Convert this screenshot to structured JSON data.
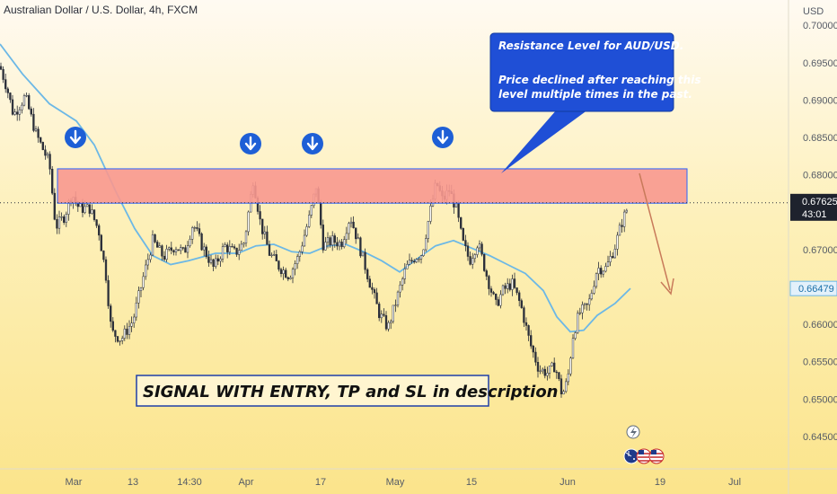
{
  "chart_data": {
    "type": "candlestick",
    "title": "Australian Dollar / U.S. Dollar, 4h, FXCM",
    "currency_label": "USD",
    "ylim": [
      0.6415,
      0.7005
    ],
    "y_ticks": [
      "0.70000",
      "0.69500",
      "0.69000",
      "0.68500",
      "0.68000",
      "0.67000",
      "0.66000",
      "0.65500",
      "0.65000",
      "0.64500"
    ],
    "x_ticks": [
      "Mar",
      "13",
      "14:30",
      "Apr",
      "17",
      "May",
      "15",
      "Jun",
      "19",
      "Jul"
    ],
    "current_price": {
      "value": 0.67625,
      "label": "0.67625",
      "countdown": "43:01"
    },
    "ma_value": {
      "value": 0.66479,
      "label": "0.66479"
    },
    "resistance_zone": {
      "low": 0.6762,
      "high": 0.6808
    },
    "resistance_touches": 4,
    "price_path": [
      [
        0,
        0.6945
      ],
      [
        8,
        0.6915
      ],
      [
        15,
        0.688
      ],
      [
        28,
        0.6905
      ],
      [
        40,
        0.6855
      ],
      [
        55,
        0.6815
      ],
      [
        62,
        0.673
      ],
      [
        72,
        0.6745
      ],
      [
        80,
        0.6775
      ],
      [
        88,
        0.6755
      ],
      [
        100,
        0.6755
      ],
      [
        110,
        0.6725
      ],
      [
        118,
        0.6665
      ],
      [
        124,
        0.659
      ],
      [
        135,
        0.658
      ],
      [
        148,
        0.6605
      ],
      [
        160,
        0.6665
      ],
      [
        170,
        0.6712
      ],
      [
        182,
        0.669
      ],
      [
        195,
        0.6705
      ],
      [
        205,
        0.6695
      ],
      [
        215,
        0.6735
      ],
      [
        225,
        0.6705
      ],
      [
        238,
        0.6675
      ],
      [
        250,
        0.6705
      ],
      [
        262,
        0.6695
      ],
      [
        272,
        0.671
      ],
      [
        282,
        0.6795
      ],
      [
        290,
        0.6735
      ],
      [
        300,
        0.6695
      ],
      [
        310,
        0.6678
      ],
      [
        322,
        0.6665
      ],
      [
        332,
        0.669
      ],
      [
        345,
        0.6745
      ],
      [
        352,
        0.6785
      ],
      [
        360,
        0.6705
      ],
      [
        370,
        0.6712
      ],
      [
        380,
        0.6708
      ],
      [
        390,
        0.6745
      ],
      [
        400,
        0.6705
      ],
      [
        412,
        0.6655
      ],
      [
        422,
        0.6615
      ],
      [
        432,
        0.6595
      ],
      [
        442,
        0.6635
      ],
      [
        452,
        0.6675
      ],
      [
        462,
        0.669
      ],
      [
        470,
        0.6695
      ],
      [
        478,
        0.6745
      ],
      [
        486,
        0.679
      ],
      [
        493,
        0.6765
      ],
      [
        500,
        0.678
      ],
      [
        508,
        0.6755
      ],
      [
        515,
        0.671
      ],
      [
        523,
        0.6685
      ],
      [
        532,
        0.671
      ],
      [
        542,
        0.6665
      ],
      [
        552,
        0.6625
      ],
      [
        560,
        0.6645
      ],
      [
        570,
        0.6655
      ],
      [
        580,
        0.6625
      ],
      [
        590,
        0.6575
      ],
      [
        600,
        0.654
      ],
      [
        610,
        0.6535
      ],
      [
        618,
        0.6545
      ],
      [
        626,
        0.6505
      ],
      [
        632,
        0.6525
      ],
      [
        638,
        0.6585
      ],
      [
        645,
        0.6615
      ],
      [
        655,
        0.6625
      ],
      [
        665,
        0.6675
      ],
      [
        675,
        0.6675
      ],
      [
        685,
        0.6705
      ],
      [
        692,
        0.6735
      ],
      [
        700,
        0.676
      ]
    ],
    "moving_average": [
      [
        0,
        0.6975
      ],
      [
        25,
        0.6935
      ],
      [
        55,
        0.6895
      ],
      [
        85,
        0.6872
      ],
      [
        105,
        0.684
      ],
      [
        130,
        0.6775
      ],
      [
        150,
        0.6728
      ],
      [
        170,
        0.6692
      ],
      [
        190,
        0.668
      ],
      [
        210,
        0.6685
      ],
      [
        240,
        0.6695
      ],
      [
        265,
        0.6695
      ],
      [
        285,
        0.6705
      ],
      [
        305,
        0.6707
      ],
      [
        325,
        0.6697
      ],
      [
        345,
        0.6695
      ],
      [
        365,
        0.6705
      ],
      [
        385,
        0.6707
      ],
      [
        405,
        0.6697
      ],
      [
        425,
        0.6685
      ],
      [
        445,
        0.667
      ],
      [
        465,
        0.6688
      ],
      [
        485,
        0.6705
      ],
      [
        505,
        0.6712
      ],
      [
        525,
        0.6702
      ],
      [
        545,
        0.6692
      ],
      [
        565,
        0.668
      ],
      [
        585,
        0.6668
      ],
      [
        605,
        0.6645
      ],
      [
        620,
        0.661
      ],
      [
        635,
        0.659
      ],
      [
        650,
        0.6592
      ],
      [
        665,
        0.6612
      ],
      [
        685,
        0.6628
      ],
      [
        702,
        0.6648
      ]
    ]
  },
  "annotation": {
    "lines": [
      "Resistance Level for AUD/USD.",
      "",
      "Price declined after reaching this",
      "level multiple times in the past."
    ]
  },
  "signal_text": "SIGNAL WITH ENTRY, TP and SL in description",
  "colors": {
    "zone": "#f8988f",
    "zone_border": "#2962ff",
    "callout": "#1f4fd6",
    "ma": "#6cb8e6",
    "candle": "#2a2e39",
    "arrow": "#1e5fd6",
    "projection": "#c87a5a"
  },
  "icons": [
    "lightning-icon",
    "australia-flag-icon",
    "usa-flag-icon",
    "usa-flag-icon"
  ]
}
